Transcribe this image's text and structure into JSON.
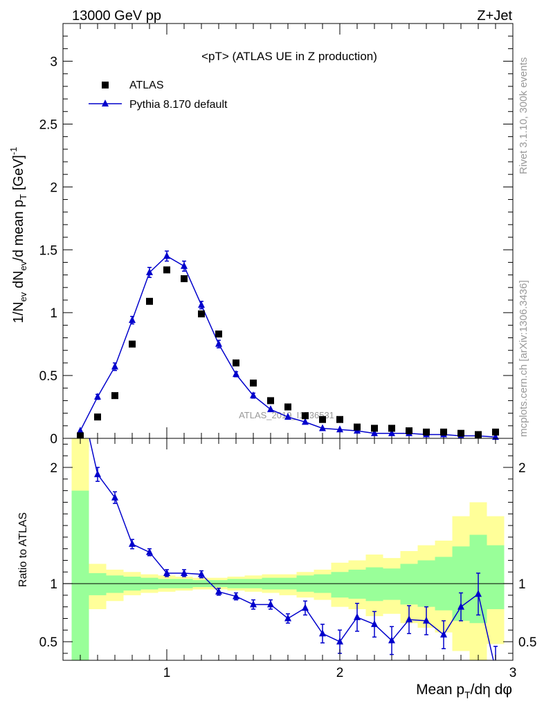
{
  "header": {
    "energy_label": "13000 GeV pp",
    "process_label": "Z+Jet",
    "plot_title": "<pT> (ATLAS UE in Z production)",
    "analysis_watermark": "ATLAS_2019_I1736531",
    "side_label_top": "Rivet 3.1.10,  300k events",
    "side_label_bottom": "mcplots.cern.ch [arXiv:1306.3436]"
  },
  "chart_data": [
    {
      "type": "scatter",
      "panel": "main",
      "xlabel": "Mean p_T/dη dφ",
      "ylabel": "1/N_ev dN_ev/d mean p_T [GeV]^-1",
      "xlim": [
        0.4,
        3.0
      ],
      "ylim": [
        0,
        3.3
      ],
      "yticks": [
        0,
        0.5,
        1,
        1.5,
        2,
        2.5,
        3
      ],
      "ytick_labels": [
        "0",
        "0.5",
        "1",
        "1.5",
        "2",
        "2.5",
        "3"
      ],
      "xticks": [
        1,
        2,
        3
      ],
      "legend_position": "top-left",
      "x": [
        0.5,
        0.6,
        0.7,
        0.8,
        0.9,
        1.0,
        1.1,
        1.2,
        1.3,
        1.4,
        1.5,
        1.6,
        1.7,
        1.8,
        1.9,
        2.0,
        2.1,
        2.2,
        2.3,
        2.4,
        2.5,
        2.6,
        2.7,
        2.8,
        2.9
      ],
      "series": [
        {
          "name": "ATLAS",
          "style": "marker-square",
          "color": "#000000",
          "values": [
            0.02,
            0.17,
            0.34,
            0.75,
            1.09,
            1.34,
            1.27,
            0.99,
            0.83,
            0.6,
            0.44,
            0.3,
            0.25,
            0.18,
            0.15,
            0.15,
            0.09,
            0.08,
            0.08,
            0.06,
            0.05,
            0.05,
            0.04,
            0.03,
            0.05
          ]
        },
        {
          "name": "Pythia 8.170 default",
          "style": "line-triangle",
          "color": "#0000cc",
          "values": [
            0.06,
            0.33,
            0.57,
            0.94,
            1.32,
            1.45,
            1.37,
            1.06,
            0.75,
            0.51,
            0.34,
            0.23,
            0.17,
            0.13,
            0.08,
            0.07,
            0.06,
            0.04,
            0.04,
            0.04,
            0.03,
            0.03,
            0.02,
            0.02,
            0.01
          ],
          "errors": [
            0.01,
            0.02,
            0.03,
            0.03,
            0.04,
            0.04,
            0.04,
            0.03,
            0.03,
            0.02,
            0.02,
            0.01,
            0.01,
            0.01,
            0.01,
            0.01,
            0.01,
            0.01,
            0.01,
            0.01,
            0.01,
            0.01,
            0.01,
            0.01,
            0.01
          ]
        }
      ]
    },
    {
      "type": "line",
      "panel": "ratio",
      "ylabel": "Ratio to ATLAS",
      "xlim": [
        0.4,
        3.0
      ],
      "ylim": [
        0.34,
        2.25
      ],
      "yticks": [
        0.5,
        1,
        2
      ],
      "ytick_labels": [
        "0.5",
        "1",
        "2"
      ],
      "xticks": [
        1,
        2,
        3
      ],
      "xtick_labels": [
        "1",
        "2",
        "3"
      ],
      "reference_line": 1,
      "x": [
        0.5,
        0.6,
        0.7,
        0.8,
        0.9,
        1.0,
        1.1,
        1.2,
        1.3,
        1.4,
        1.5,
        1.6,
        1.7,
        1.8,
        1.9,
        2.0,
        2.1,
        2.2,
        2.3,
        2.4,
        2.5,
        2.6,
        2.7,
        2.8,
        2.9
      ],
      "bands": {
        "edges": [
          0.45,
          0.55,
          0.65,
          0.75,
          0.85,
          0.95,
          1.05,
          1.15,
          1.25,
          1.35,
          1.45,
          1.55,
          1.65,
          1.75,
          1.85,
          1.95,
          2.05,
          2.15,
          2.25,
          2.35,
          2.45,
          2.55,
          2.65,
          2.75,
          2.85,
          2.95
        ],
        "yellow_low": [
          0.3,
          0.78,
          0.85,
          0.9,
          0.92,
          0.93,
          0.94,
          0.95,
          0.95,
          0.94,
          0.93,
          0.92,
          0.9,
          0.88,
          0.86,
          0.8,
          0.78,
          0.72,
          0.74,
          0.66,
          0.62,
          0.58,
          0.42,
          0.3,
          0.48
        ],
        "yellow_high": [
          2.3,
          1.17,
          1.12,
          1.1,
          1.08,
          1.07,
          1.06,
          1.05,
          1.05,
          1.06,
          1.07,
          1.08,
          1.08,
          1.1,
          1.12,
          1.18,
          1.2,
          1.25,
          1.22,
          1.28,
          1.33,
          1.37,
          1.58,
          1.7,
          1.58
        ],
        "green_low": [
          0.3,
          0.9,
          0.92,
          0.94,
          0.95,
          0.96,
          0.96,
          0.97,
          0.97,
          0.96,
          0.96,
          0.95,
          0.95,
          0.93,
          0.92,
          0.88,
          0.87,
          0.85,
          0.86,
          0.82,
          0.8,
          0.77,
          0.68,
          0.66,
          0.78
        ],
        "green_high": [
          1.8,
          1.09,
          1.07,
          1.06,
          1.05,
          1.04,
          1.04,
          1.03,
          1.03,
          1.04,
          1.04,
          1.05,
          1.05,
          1.07,
          1.08,
          1.1,
          1.12,
          1.14,
          1.13,
          1.17,
          1.2,
          1.23,
          1.32,
          1.42,
          1.33
        ]
      },
      "series": [
        {
          "name": "Pythia 8.170 default",
          "color": "#0000cc",
          "values": [
            2.6,
            1.94,
            1.74,
            1.34,
            1.27,
            1.09,
            1.09,
            1.08,
            0.93,
            0.89,
            0.82,
            0.82,
            0.7,
            0.79,
            0.57,
            0.5,
            0.71,
            0.65,
            0.51,
            0.69,
            0.68,
            0.56,
            0.8,
            0.91,
            0.26
          ],
          "errors": [
            0.1,
            0.06,
            0.05,
            0.04,
            0.03,
            0.03,
            0.03,
            0.03,
            0.03,
            0.03,
            0.04,
            0.04,
            0.04,
            0.06,
            0.08,
            0.1,
            0.12,
            0.11,
            0.12,
            0.12,
            0.12,
            0.12,
            0.12,
            0.18,
            0.2
          ]
        }
      ]
    }
  ]
}
